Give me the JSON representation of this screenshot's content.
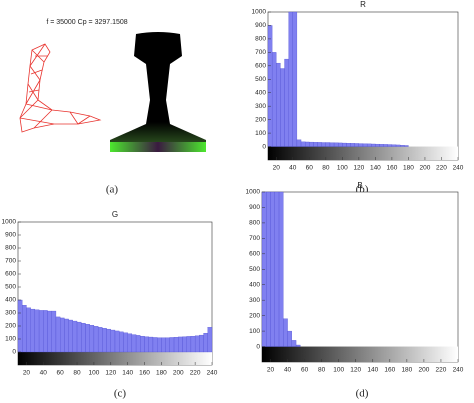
{
  "panel_a": {
    "caption_text": "f = 35000 Cp = 3297.1508"
  },
  "captions": [
    "(a)",
    "(b)",
    "(c)",
    "(d)"
  ],
  "chart_data": [
    {
      "type": "histogram",
      "title": "R",
      "color": "#8080f0",
      "bins": [
        10,
        15,
        20,
        25,
        30,
        35,
        40,
        45,
        50,
        55,
        60,
        65,
        70,
        75,
        80,
        85,
        90,
        95,
        100,
        105,
        110,
        115,
        120,
        125,
        130,
        135,
        140,
        145,
        150,
        155,
        160,
        165,
        170,
        175,
        180,
        185,
        190,
        195,
        200,
        205,
        210,
        215,
        220,
        225,
        230,
        235,
        240
      ],
      "counts": [
        900,
        700,
        620,
        580,
        650,
        1000,
        1000,
        50,
        35,
        34,
        33,
        32,
        31,
        30,
        30,
        29,
        28,
        27,
        26,
        25,
        24,
        23,
        22,
        21,
        20,
        19,
        18,
        17,
        16,
        15,
        14,
        12,
        10,
        8,
        0,
        0,
        0,
        0,
        0,
        0,
        0,
        0,
        0,
        0,
        0,
        0
      ],
      "xlim": [
        10,
        240
      ],
      "ylim": [
        -100,
        1000
      ],
      "xticks": [
        20,
        40,
        60,
        80,
        100,
        120,
        140,
        160,
        180,
        200,
        220,
        240
      ],
      "yticks": [
        0,
        100,
        200,
        300,
        400,
        500,
        600,
        700,
        800,
        900,
        1000
      ]
    },
    {
      "type": "histogram",
      "title": "G",
      "color": "#8080f0",
      "bins": [
        10,
        15,
        20,
        25,
        30,
        35,
        40,
        45,
        50,
        55,
        60,
        65,
        70,
        75,
        80,
        85,
        90,
        95,
        100,
        105,
        110,
        115,
        120,
        125,
        130,
        135,
        140,
        145,
        150,
        155,
        160,
        165,
        170,
        175,
        180,
        185,
        190,
        195,
        200,
        205,
        210,
        215,
        220,
        225,
        230,
        235,
        240
      ],
      "counts": [
        400,
        360,
        340,
        330,
        325,
        320,
        320,
        315,
        315,
        270,
        262,
        254,
        246,
        238,
        230,
        222,
        214,
        206,
        198,
        190,
        183,
        176,
        169,
        162,
        155,
        148,
        141,
        134,
        128,
        122,
        118,
        115,
        112,
        110,
        110,
        110,
        112,
        114,
        116,
        118,
        120,
        122,
        125,
        130,
        145,
        190
      ],
      "xlim": [
        10,
        240
      ],
      "ylim": [
        -100,
        1000
      ],
      "xticks": [
        20,
        40,
        60,
        80,
        100,
        120,
        140,
        160,
        180,
        200,
        220,
        240
      ],
      "yticks": [
        0,
        100,
        200,
        300,
        400,
        500,
        600,
        700,
        800,
        900,
        1000
      ]
    },
    {
      "type": "histogram",
      "title": "B",
      "color": "#8080f0",
      "bins": [
        10,
        15,
        20,
        25,
        30,
        35,
        40,
        45,
        50,
        55,
        60,
        65,
        70,
        75,
        80,
        85,
        90,
        95,
        100,
        105,
        110,
        115,
        120,
        125,
        130,
        135,
        140,
        145,
        150,
        155,
        160,
        165,
        170,
        175,
        180,
        185,
        190,
        195,
        200,
        205,
        210,
        215,
        220,
        225,
        230,
        235,
        240
      ],
      "counts": [
        1000,
        1000,
        1000,
        1000,
        1000,
        180,
        100,
        40,
        10,
        0,
        0,
        0,
        0,
        0,
        0,
        0,
        0,
        0,
        0,
        0,
        0,
        0,
        0,
        0,
        0,
        0,
        0,
        0,
        0,
        0,
        0,
        0,
        0,
        0,
        0,
        0,
        0,
        0,
        0,
        0,
        0,
        0,
        0,
        0,
        0,
        0
      ],
      "xlim": [
        10,
        240
      ],
      "ylim": [
        -100,
        1000
      ],
      "xticks": [
        20,
        40,
        60,
        80,
        100,
        120,
        140,
        160,
        180,
        200,
        220,
        240
      ],
      "yticks": [
        0,
        100,
        200,
        300,
        400,
        500,
        600,
        700,
        800,
        900,
        1000
      ]
    }
  ]
}
